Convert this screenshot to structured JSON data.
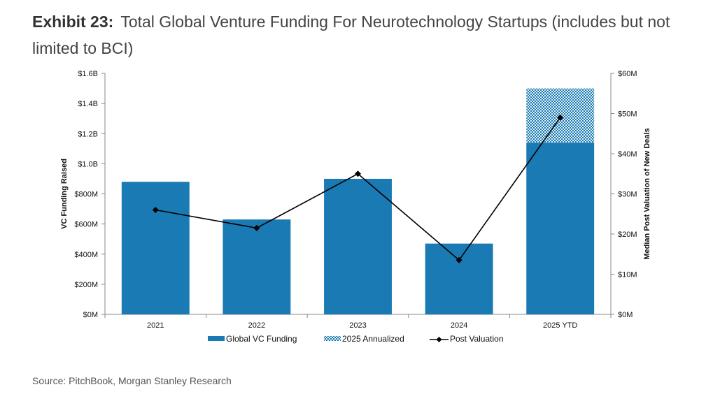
{
  "header": {
    "exhibit": "Exhibit 23:",
    "title": "Total Global Venture Funding For Neurotechnology Startups (includes but not limited to BCI)"
  },
  "footer": {
    "source": "Source: PitchBook, Morgan Stanley Research"
  },
  "chart_data": {
    "type": "bar",
    "categories": [
      "2021",
      "2022",
      "2023",
      "2024",
      "2025 YTD"
    ],
    "series": [
      {
        "name": "Global VC Funding",
        "type": "bar",
        "axis": "left",
        "color": "#1a7ab3",
        "values": [
          0.88,
          0.63,
          0.9,
          0.47,
          1.14
        ]
      },
      {
        "name": "2025 Annualized",
        "type": "bar-stacked",
        "axis": "left",
        "color": "#1a7ab3",
        "pattern": "checker",
        "values": [
          null,
          null,
          null,
          null,
          0.36
        ]
      },
      {
        "name": "Post Valuation",
        "type": "line",
        "axis": "right",
        "color": "#000000",
        "marker": "diamond",
        "values": [
          26,
          21.5,
          35,
          13.5,
          49
        ]
      }
    ],
    "ylabel": "VC Funding Raised",
    "y2label": "Median Post Valuation of New Deals",
    "ylim": [
      0,
      1.6
    ],
    "y2lim": [
      0,
      60
    ],
    "yticks": [
      "$0M",
      "$200M",
      "$400M",
      "$600M",
      "$800M",
      "$1.0B",
      "$1.2B",
      "$1.4B",
      "$1.6B"
    ],
    "y2ticks": [
      "$0M",
      "$10M",
      "$20M",
      "$30M",
      "$40M",
      "$50M",
      "$60M"
    ],
    "legend_position": "bottom",
    "grid": false
  }
}
